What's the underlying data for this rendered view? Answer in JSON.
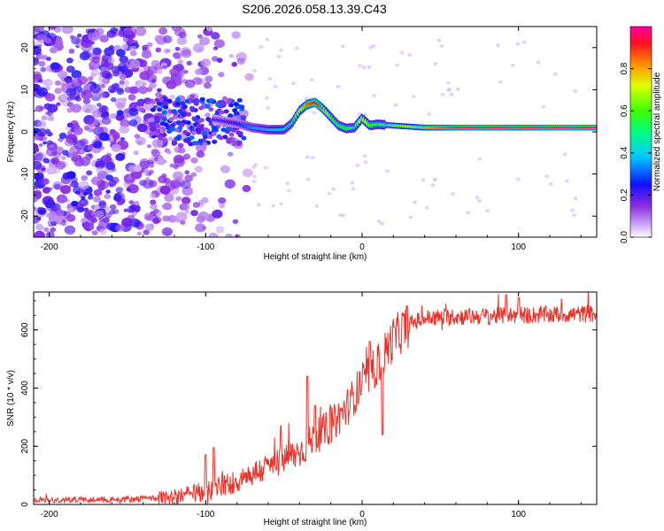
{
  "title": "S206.2026.058.13.39.C43",
  "chart_data": [
    {
      "type": "heatmap",
      "name": "spectrogram",
      "xlabel": "Height of straight line (km)",
      "ylabel": "Frequency (Hz)",
      "xlim": [
        -210,
        150
      ],
      "ylim": [
        -25,
        25
      ],
      "xticks": [
        -200,
        -100,
        0,
        100
      ],
      "yticks": [
        -20,
        -10,
        0,
        10,
        20
      ],
      "colorbar": {
        "label": "Normalized spectral amplitude",
        "range": [
          0,
          1
        ],
        "ticks": [
          0.0,
          0.2,
          0.4,
          0.6,
          0.8
        ],
        "tick_labels": [
          "0.0",
          "0.2",
          "0.4",
          "0.6",
          "0.8"
        ]
      },
      "ridge": {
        "description": "dominant frequency track",
        "x": [
          -95,
          -80,
          -70,
          -60,
          -50,
          -45,
          -40,
          -35,
          -30,
          -25,
          -20,
          -15,
          -10,
          -5,
          0,
          5,
          10,
          20,
          40,
          60,
          80,
          100,
          120,
          150
        ],
        "freq": [
          3,
          2,
          1,
          0.5,
          0.5,
          2,
          5,
          6.5,
          7,
          5.5,
          3.5,
          1.5,
          0.8,
          1,
          3.2,
          1.5,
          1.8,
          1.5,
          1,
          1,
          1,
          1,
          1,
          1
        ],
        "amplitude": [
          0.2,
          0.25,
          0.35,
          0.4,
          0.45,
          0.5,
          0.7,
          0.85,
          0.95,
          0.85,
          0.6,
          0.55,
          0.6,
          0.5,
          0.8,
          0.6,
          0.55,
          0.65,
          0.8,
          0.92,
          0.95,
          0.9,
          0.95,
          0.95
        ]
      }
    },
    {
      "type": "line",
      "name": "snr",
      "xlabel": "Height of straight line (km)",
      "ylabel": "SNR (10 * v/v)",
      "xlim": [
        -210,
        150
      ],
      "ylim": [
        0,
        730
      ],
      "xticks": [
        -200,
        -100,
        0,
        100
      ],
      "yticks": [
        0,
        200,
        400,
        600
      ],
      "color": "#e8332b",
      "trend": {
        "x": [
          -210,
          -150,
          -120,
          -100,
          -80,
          -60,
          -40,
          -30,
          -20,
          -10,
          0,
          10,
          20,
          30,
          40,
          60,
          100,
          150
        ],
        "y": [
          15,
          18,
          25,
          45,
          80,
          130,
          180,
          230,
          270,
          330,
          420,
          480,
          570,
          620,
          640,
          645,
          650,
          655
        ]
      },
      "spikes": [
        {
          "x": -100,
          "y": 170
        },
        {
          "x": -95,
          "y": 195
        },
        {
          "x": -52,
          "y": 270
        },
        {
          "x": -35,
          "y": 440
        },
        {
          "x": -30,
          "y": 340
        },
        {
          "x": 5,
          "y": 560
        },
        {
          "x": 13,
          "y": 240
        },
        {
          "x": 92,
          "y": 720
        },
        {
          "x": 100,
          "y": 710
        }
      ]
    }
  ],
  "colors": {
    "line": "#e8332b",
    "ridge_core": "#e02020"
  }
}
